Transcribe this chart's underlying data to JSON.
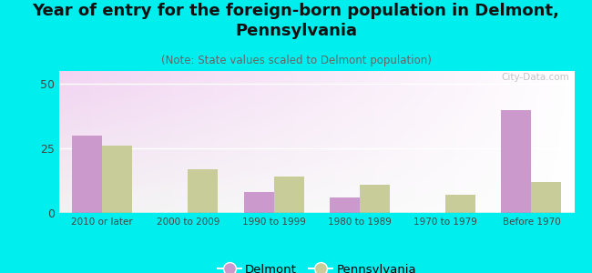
{
  "title": "Year of entry for the foreign-born population in Delmont,\nPennsylvania",
  "subtitle": "(Note: State values scaled to Delmont population)",
  "categories": [
    "2010 or later",
    "2000 to 2009",
    "1990 to 1999",
    "1980 to 1989",
    "1970 to 1979",
    "Before 1970"
  ],
  "delmont_values": [
    30,
    0,
    8,
    6,
    0,
    40
  ],
  "pennsylvania_values": [
    26,
    17,
    14,
    11,
    7,
    12
  ],
  "delmont_color": "#cc99cc",
  "pennsylvania_color": "#c8cc99",
  "background_color": "#00eeee",
  "ylim": [
    0,
    55
  ],
  "yticks": [
    0,
    25,
    50
  ],
  "bar_width": 0.35,
  "watermark": "City-Data.com",
  "title_fontsize": 13,
  "subtitle_fontsize": 8.5,
  "legend_fontsize": 9.5
}
